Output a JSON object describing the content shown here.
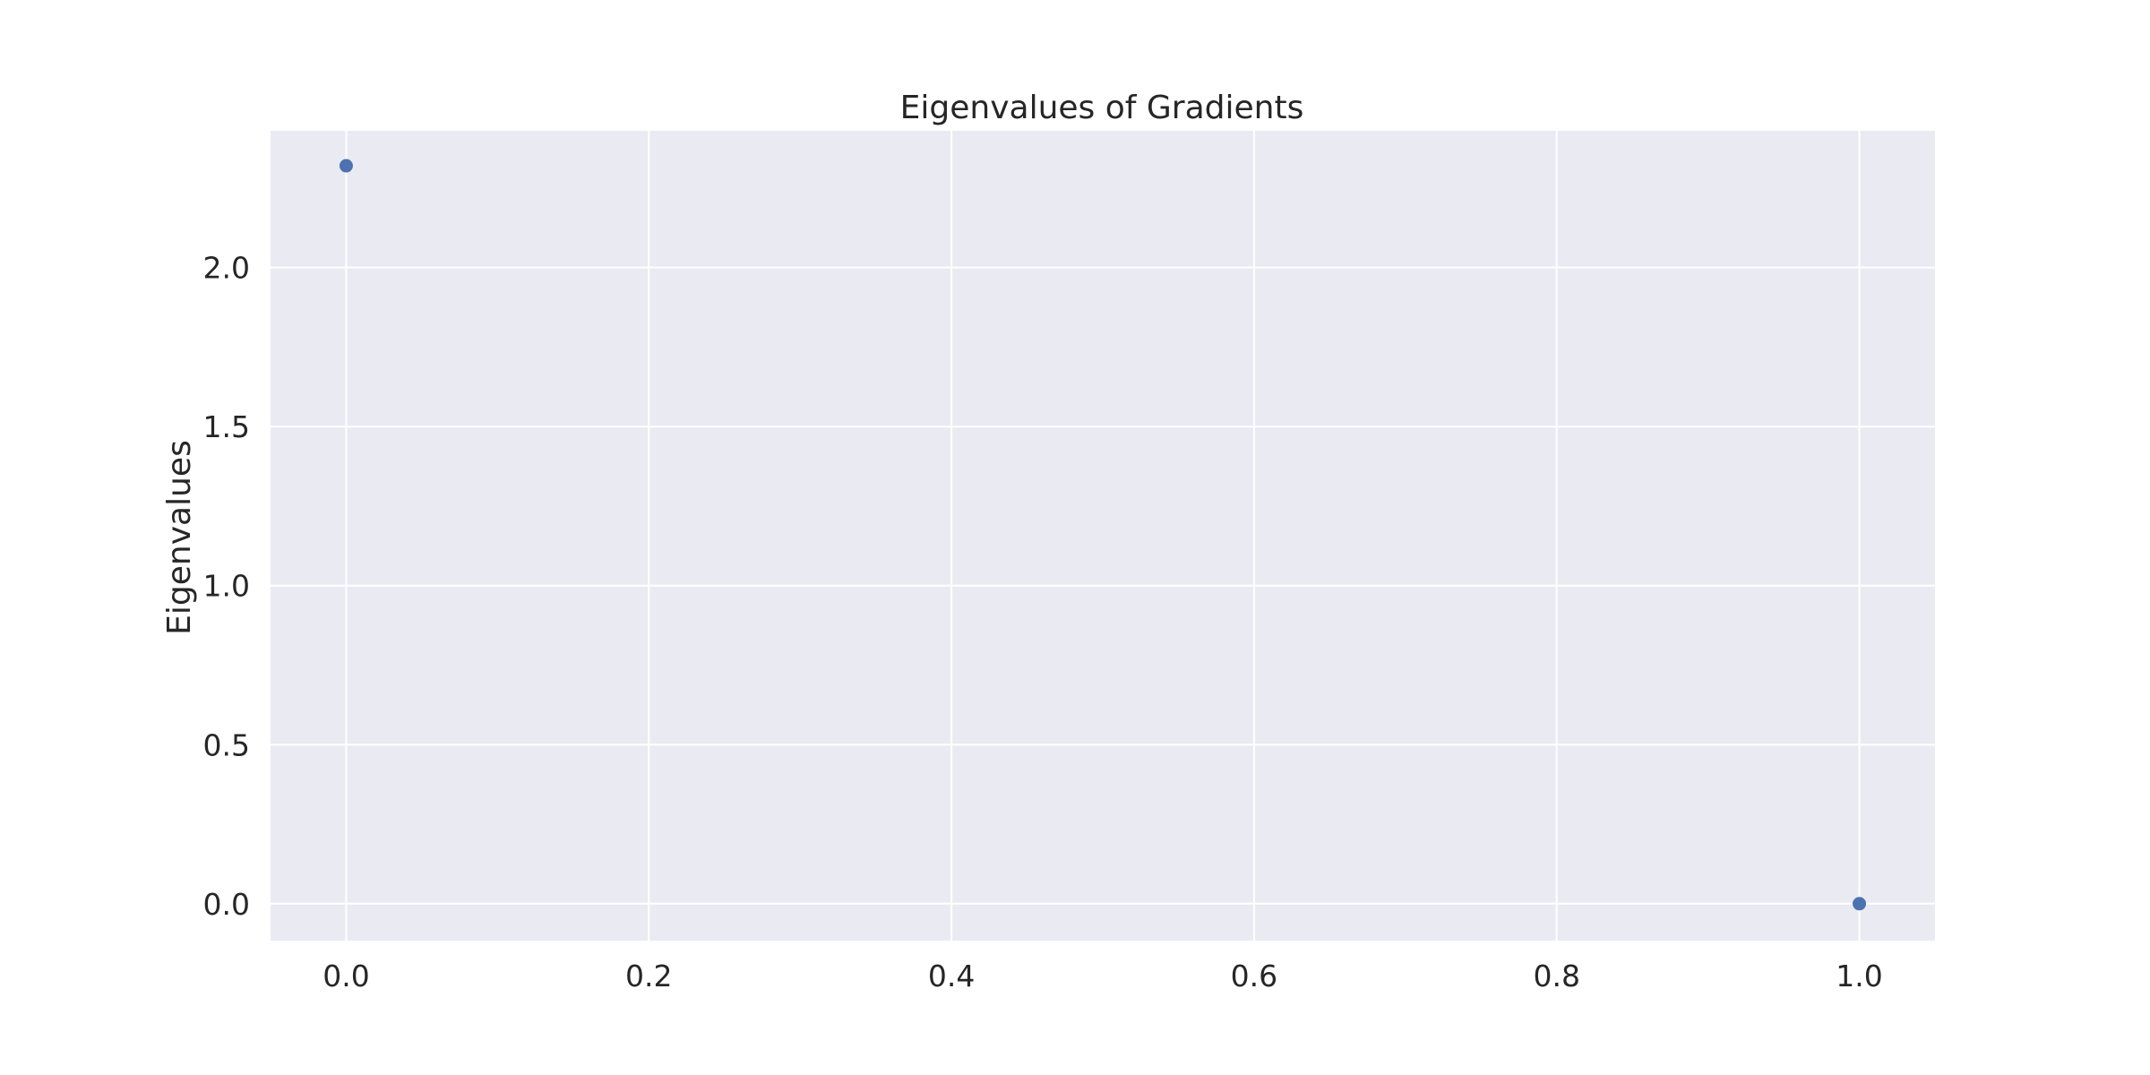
{
  "chart_data": {
    "type": "scatter",
    "title": "Eigenvalues of Gradients",
    "xlabel": "",
    "ylabel": "Eigenvalues",
    "xlim": [
      -0.05,
      1.05
    ],
    "ylim": [
      -0.116,
      2.43
    ],
    "xticks": [
      0.0,
      0.2,
      0.4,
      0.6,
      0.8,
      1.0
    ],
    "xtick_labels": [
      "0.0",
      "0.2",
      "0.4",
      "0.6",
      "0.8",
      "1.0"
    ],
    "yticks": [
      0.0,
      0.5,
      1.0,
      1.5,
      2.0
    ],
    "ytick_labels": [
      "0.0",
      "0.5",
      "1.0",
      "1.5",
      "2.0"
    ],
    "grid": true,
    "series": [
      {
        "x": [
          0.0,
          1.0
        ],
        "y": [
          2.32,
          0.0
        ]
      }
    ],
    "colors": {
      "plot_background": "#eaeaf2",
      "grid": "#ffffff",
      "marker": "#4c72b0",
      "text": "#262626"
    }
  }
}
